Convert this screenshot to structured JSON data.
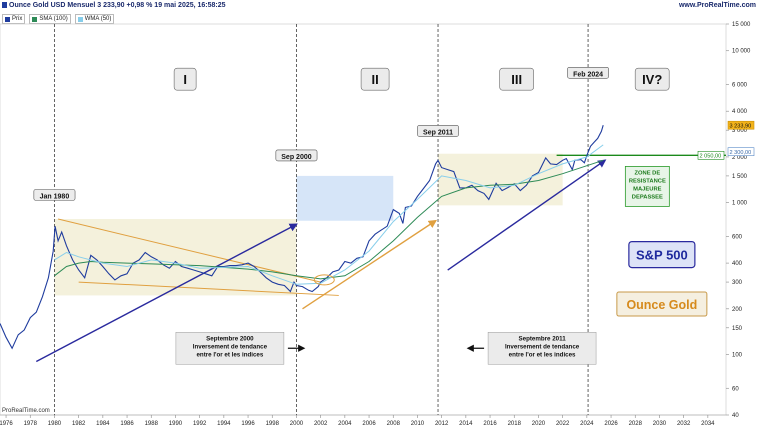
{
  "header": {
    "instrument_line": "Ounce Gold USD Mensuel 3 233,90 +0,98 % 19 mai 2025, 16:58:25",
    "website": "www.ProRealTime.com"
  },
  "legend": [
    {
      "label": "Prix",
      "color": "#1f3c9e"
    },
    {
      "label": "SMA (100)",
      "color": "#2e8b57"
    },
    {
      "label": "WMA (50)",
      "color": "#87ceeb"
    }
  ],
  "footer": "ProRealTime.com",
  "chart_data": {
    "type": "line",
    "title": "Ounce Gold USD Mensuel",
    "y_scale": "log",
    "ylim": [
      40,
      15000
    ],
    "xlim": [
      1975.5,
      2035.5
    ],
    "y_ticks": [
      {
        "value": 15000,
        "label": "15 000"
      },
      {
        "value": 10000,
        "label": "10 000"
      },
      {
        "value": 6000,
        "label": "6 000"
      },
      {
        "value": 4000,
        "label": "4 000"
      },
      {
        "value": 3000,
        "label": "3 000"
      },
      {
        "value": 2000,
        "label": "2 000"
      },
      {
        "value": 1500,
        "label": "1 500"
      },
      {
        "value": 1000,
        "label": "1 000"
      },
      {
        "value": 600,
        "label": "600"
      },
      {
        "value": 400,
        "label": "400"
      },
      {
        "value": 300,
        "label": "300"
      },
      {
        "value": 200,
        "label": "200"
      },
      {
        "value": 150,
        "label": "150"
      },
      {
        "value": 100,
        "label": "100"
      },
      {
        "value": 60,
        "label": "60"
      },
      {
        "value": 40,
        "label": "40"
      }
    ],
    "x_ticks": [
      {
        "value": 1976,
        "label": "1976"
      },
      {
        "value": 1978,
        "label": "1978"
      },
      {
        "value": 1980,
        "label": "1980"
      },
      {
        "value": 1982,
        "label": "1982"
      },
      {
        "value": 1984,
        "label": "1984"
      },
      {
        "value": 1986,
        "label": "1986"
      },
      {
        "value": 1988,
        "label": "1988"
      },
      {
        "value": 1990,
        "label": "1990"
      },
      {
        "value": 1992,
        "label": "1992"
      },
      {
        "value": 1994,
        "label": "1994"
      },
      {
        "value": 1996,
        "label": "1996"
      },
      {
        "value": 1998,
        "label": "1998"
      },
      {
        "value": 2000,
        "label": "2000"
      },
      {
        "value": 2002,
        "label": "2002"
      },
      {
        "value": 2004,
        "label": "2004"
      },
      {
        "value": 2006,
        "label": "2006"
      },
      {
        "value": 2008,
        "label": "2008"
      },
      {
        "value": 2010,
        "label": "2010"
      },
      {
        "value": 2012,
        "label": "2012"
      },
      {
        "value": 2014,
        "label": "2014"
      },
      {
        "value": 2016,
        "label": "2016"
      },
      {
        "value": 2018,
        "label": "2018"
      },
      {
        "value": 2020,
        "label": "2020"
      },
      {
        "value": 2022,
        "label": "2022"
      },
      {
        "value": 2024,
        "label": "2024"
      },
      {
        "value": 2026,
        "label": "2026"
      },
      {
        "value": 2028,
        "label": "2028"
      },
      {
        "value": 2030,
        "label": "2030"
      },
      {
        "value": 2032,
        "label": "2032"
      },
      {
        "value": 2034,
        "label": "2034"
      }
    ],
    "series": [
      {
        "name": "Prix",
        "color": "#1f3c9e",
        "points": [
          [
            1975.5,
            160
          ],
          [
            1976.0,
            130
          ],
          [
            1976.5,
            110
          ],
          [
            1977.0,
            135
          ],
          [
            1977.5,
            145
          ],
          [
            1978.0,
            175
          ],
          [
            1978.5,
            190
          ],
          [
            1979.0,
            240
          ],
          [
            1979.5,
            320
          ],
          [
            1979.9,
            480
          ],
          [
            1980.05,
            700
          ],
          [
            1980.3,
            560
          ],
          [
            1980.6,
            640
          ],
          [
            1981.0,
            520
          ],
          [
            1981.5,
            420
          ],
          [
            1982.0,
            360
          ],
          [
            1982.5,
            320
          ],
          [
            1983.0,
            450
          ],
          [
            1983.5,
            420
          ],
          [
            1984.0,
            380
          ],
          [
            1984.5,
            340
          ],
          [
            1985.0,
            310
          ],
          [
            1985.5,
            330
          ],
          [
            1986.0,
            340
          ],
          [
            1986.5,
            400
          ],
          [
            1987.0,
            420
          ],
          [
            1987.5,
            470
          ],
          [
            1988.0,
            440
          ],
          [
            1988.5,
            420
          ],
          [
            1989.0,
            390
          ],
          [
            1989.5,
            370
          ],
          [
            1990.0,
            410
          ],
          [
            1990.5,
            380
          ],
          [
            1991.0,
            370
          ],
          [
            1991.5,
            360
          ],
          [
            1992.0,
            350
          ],
          [
            1992.5,
            340
          ],
          [
            1993.0,
            330
          ],
          [
            1993.5,
            380
          ],
          [
            1994.0,
            380
          ],
          [
            1994.5,
            385
          ],
          [
            1995.0,
            385
          ],
          [
            1995.5,
            390
          ],
          [
            1996.0,
            400
          ],
          [
            1996.5,
            380
          ],
          [
            1997.0,
            350
          ],
          [
            1997.5,
            320
          ],
          [
            1998.0,
            300
          ],
          [
            1998.5,
            290
          ],
          [
            1999.0,
            285
          ],
          [
            1999.5,
            260
          ],
          [
            1999.8,
            300
          ],
          [
            2000.0,
            285
          ],
          [
            2000.5,
            280
          ],
          [
            2001.0,
            265
          ],
          [
            2001.3,
            260
          ],
          [
            2001.8,
            280
          ],
          [
            2002.0,
            300
          ],
          [
            2002.5,
            320
          ],
          [
            2003.0,
            350
          ],
          [
            2003.5,
            360
          ],
          [
            2004.0,
            410
          ],
          [
            2004.5,
            400
          ],
          [
            2005.0,
            430
          ],
          [
            2005.5,
            440
          ],
          [
            2006.0,
            560
          ],
          [
            2006.5,
            620
          ],
          [
            2007.0,
            660
          ],
          [
            2007.5,
            700
          ],
          [
            2008.0,
            900
          ],
          [
            2008.5,
            850
          ],
          [
            2008.8,
            730
          ],
          [
            2009.0,
            930
          ],
          [
            2009.5,
            950
          ],
          [
            2010.0,
            1100
          ],
          [
            2010.5,
            1240
          ],
          [
            2011.0,
            1400
          ],
          [
            2011.5,
            1800
          ],
          [
            2011.7,
            1900
          ],
          [
            2012.0,
            1700
          ],
          [
            2012.5,
            1650
          ],
          [
            2013.0,
            1600
          ],
          [
            2013.5,
            1250
          ],
          [
            2014.0,
            1250
          ],
          [
            2014.5,
            1300
          ],
          [
            2015.0,
            1200
          ],
          [
            2015.5,
            1150
          ],
          [
            2015.9,
            1050
          ],
          [
            2016.5,
            1340
          ],
          [
            2017.0,
            1200
          ],
          [
            2017.5,
            1260
          ],
          [
            2018.0,
            1330
          ],
          [
            2018.5,
            1200
          ],
          [
            2019.0,
            1300
          ],
          [
            2019.5,
            1500
          ],
          [
            2020.0,
            1580
          ],
          [
            2020.6,
            1970
          ],
          [
            2021.0,
            1800
          ],
          [
            2021.5,
            1780
          ],
          [
            2022.0,
            1900
          ],
          [
            2022.3,
            1950
          ],
          [
            2022.8,
            1650
          ],
          [
            2023.0,
            1900
          ],
          [
            2023.5,
            1920
          ],
          [
            2023.8,
            1830
          ],
          [
            2024.0,
            2050
          ],
          [
            2024.3,
            2350
          ],
          [
            2024.6,
            2500
          ],
          [
            2024.9,
            2650
          ],
          [
            2025.2,
            2950
          ],
          [
            2025.35,
            3233.9
          ]
        ]
      },
      {
        "name": "SMA (100)",
        "color": "#2e8b57",
        "points": [
          [
            1980.0,
            330
          ],
          [
            1981.0,
            380
          ],
          [
            1982.0,
            400
          ],
          [
            1983.0,
            410
          ],
          [
            1984.0,
            405
          ],
          [
            1986.0,
            400
          ],
          [
            1988.0,
            395
          ],
          [
            1990.0,
            390
          ],
          [
            1992.0,
            385
          ],
          [
            1994.0,
            375
          ],
          [
            1996.0,
            365
          ],
          [
            1998.0,
            350
          ],
          [
            2000.0,
            330
          ],
          [
            2002.0,
            315
          ],
          [
            2004.0,
            330
          ],
          [
            2006.0,
            410
          ],
          [
            2008.0,
            560
          ],
          [
            2010.0,
            800
          ],
          [
            2012.0,
            1100
          ],
          [
            2014.0,
            1250
          ],
          [
            2016.0,
            1300
          ],
          [
            2018.0,
            1320
          ],
          [
            2020.0,
            1400
          ],
          [
            2022.0,
            1550
          ],
          [
            2024.0,
            1750
          ],
          [
            2025.35,
            1900
          ]
        ]
      },
      {
        "name": "WMA (50)",
        "color": "#87ceeb",
        "points": [
          [
            1980.0,
            420
          ],
          [
            1981.0,
            470
          ],
          [
            1982.0,
            440
          ],
          [
            1984.0,
            400
          ],
          [
            1986.0,
            380
          ],
          [
            1988.0,
            420
          ],
          [
            1990.0,
            400
          ],
          [
            1992.0,
            370
          ],
          [
            1994.0,
            375
          ],
          [
            1996.0,
            380
          ],
          [
            1998.0,
            330
          ],
          [
            2000.0,
            290
          ],
          [
            2002.0,
            295
          ],
          [
            2004.0,
            360
          ],
          [
            2006.0,
            480
          ],
          [
            2008.0,
            750
          ],
          [
            2010.0,
            1050
          ],
          [
            2012.0,
            1500
          ],
          [
            2014.0,
            1400
          ],
          [
            2016.0,
            1250
          ],
          [
            2018.0,
            1300
          ],
          [
            2020.0,
            1550
          ],
          [
            2022.0,
            1800
          ],
          [
            2024.0,
            2000
          ],
          [
            2025.35,
            2400
          ]
        ]
      }
    ],
    "current_price": {
      "label": "3 233,90",
      "value": 3233.9
    },
    "price_tags": [
      {
        "label": "3 233,90",
        "value": 3233.9,
        "style": "gold"
      },
      {
        "label": "2 050,00",
        "value": 2050,
        "style": "green"
      },
      {
        "label": "2 300,00",
        "value": 2300,
        "style": "blue"
      }
    ],
    "resistance_line": {
      "value": 2050,
      "from": 2021.5
    },
    "phase_dividers": [
      {
        "x": 1980.0,
        "date_label": "Jan 1980",
        "label_at": 1100
      },
      {
        "x": 2000.0,
        "date_label": "Sep 2000",
        "label_at": 2000
      },
      {
        "x": 2011.7,
        "date_label": "Sep 2011",
        "label_at": 2900
      },
      {
        "x": 2024.1,
        "date_label": "Feb 2024",
        "label_at": 7000
      }
    ],
    "phase_labels": [
      {
        "label": "I",
        "x": 1990.8,
        "value": 6500
      },
      {
        "label": "II",
        "x": 2006.5,
        "value": 6500
      },
      {
        "label": "III",
        "x": 2018.2,
        "value": 6500
      },
      {
        "label": "IV?",
        "x": 2029.4,
        "value": 6500
      }
    ],
    "zones": [
      {
        "x0": 1980.0,
        "x1": 2000.0,
        "y0": 245,
        "y1": 780,
        "color": "#f2eed6"
      },
      {
        "x0": 2000.0,
        "x1": 2008.0,
        "y0": 760,
        "y1": 1500,
        "color": "#cfe0f7"
      },
      {
        "x0": 2011.7,
        "x1": 2022.0,
        "y0": 960,
        "y1": 2100,
        "color": "#f2eed6"
      }
    ],
    "trend_lines": [
      {
        "from": [
          1980.3,
          780
        ],
        "to": [
          2002.0,
          300
        ],
        "color": "#e0a040"
      },
      {
        "from": [
          1982.0,
          300
        ],
        "to": [
          2003.5,
          245
        ],
        "color": "#e0a040"
      },
      {
        "from": [
          2000.5,
          200
        ],
        "to": [
          2011.5,
          760
        ],
        "color": "#e0a040",
        "arrow": true
      },
      {
        "from": [
          1978.5,
          90
        ],
        "to": [
          2000.0,
          720
        ],
        "color": "#2a2a9e",
        "arrow": true
      },
      {
        "from": [
          2012.5,
          360
        ],
        "to": [
          2025.5,
          1900
        ],
        "color": "#2a2a9e",
        "arrow": true
      }
    ],
    "highlight_ellipse": {
      "x": 2002.3,
      "value": 310
    },
    "annotations": [
      {
        "id": "sep2000",
        "lines": [
          "Septembre 2000",
          "Inversement de tendance",
          "entre l'or et les indices"
        ],
        "x": 1994.5,
        "value": 110,
        "arrow": "right"
      },
      {
        "id": "sep2011",
        "lines": [
          "Septembre 2011",
          "Inversement de tendance",
          "entre l'or et les indices"
        ],
        "x": 2020.3,
        "value": 110,
        "arrow": "left"
      }
    ],
    "resistance_label": {
      "lines": [
        "ZONE DE",
        "RESISTANCE",
        "MAJEURE",
        "DEPASSEE"
      ],
      "x": 2029.0,
      "value": 1260
    },
    "badges": [
      {
        "label": "S&P 500",
        "x": 2030.2,
        "value": 455
      },
      {
        "label": "Ounce Gold",
        "x": 2030.2,
        "value": 215
      }
    ]
  }
}
